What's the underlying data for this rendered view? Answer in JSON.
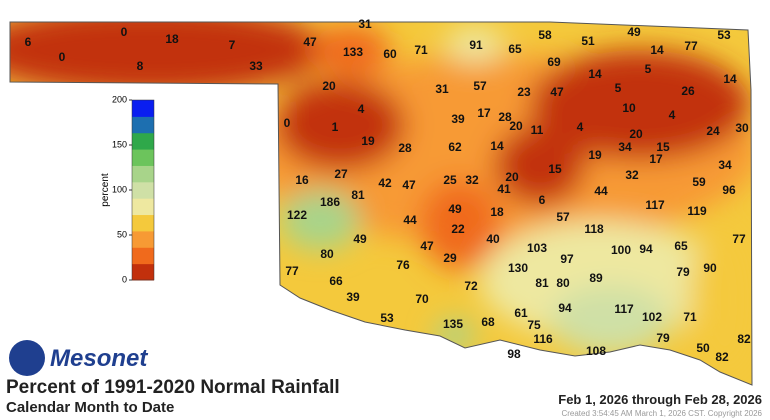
{
  "logo": "Mesonet",
  "title": "Percent of 1991-2020 Normal Rainfall",
  "subtitle": "Calendar Month to Date",
  "date_range": "Feb 1, 2026 through Feb 28, 2026",
  "created": "Created 3:54:45 AM March 1, 2026 CST. Copyright 2026",
  "legend": {
    "label": "percent",
    "ticks": [
      0,
      50,
      100,
      150,
      200
    ],
    "colors": [
      "#c2300c",
      "#f06a1c",
      "#f79a34",
      "#f4c93c",
      "#eee8a0",
      "#cfe0a6",
      "#a8d48a",
      "#6cc45c",
      "#2fa84a",
      "#1d6fb0",
      "#0a1ef0"
    ]
  },
  "stations": [
    6,
    0,
    0,
    18,
    8,
    7,
    33,
    31,
    47,
    133,
    60,
    71,
    91,
    65,
    58,
    51,
    49,
    77,
    53,
    14,
    69,
    14,
    5,
    5,
    14,
    20,
    31,
    57,
    23,
    47,
    26,
    4,
    10,
    4,
    0,
    1,
    39,
    17,
    28,
    20,
    11,
    4,
    20,
    24,
    30,
    19,
    28,
    62,
    14,
    34,
    15,
    17,
    19,
    15,
    34,
    16,
    27,
    42,
    47,
    25,
    32,
    20,
    41,
    32,
    59,
    96,
    81,
    186,
    6,
    44,
    122,
    44,
    49,
    18,
    57,
    117,
    119,
    118,
    22,
    49,
    47,
    40,
    77,
    103,
    100,
    94,
    65,
    80,
    76,
    29,
    97,
    130,
    90,
    79,
    77,
    89,
    66,
    81,
    80,
    72,
    39,
    70,
    94,
    61,
    117,
    102,
    71,
    53,
    135,
    68,
    75,
    82,
    116,
    79,
    108,
    98,
    50,
    82
  ]
}
